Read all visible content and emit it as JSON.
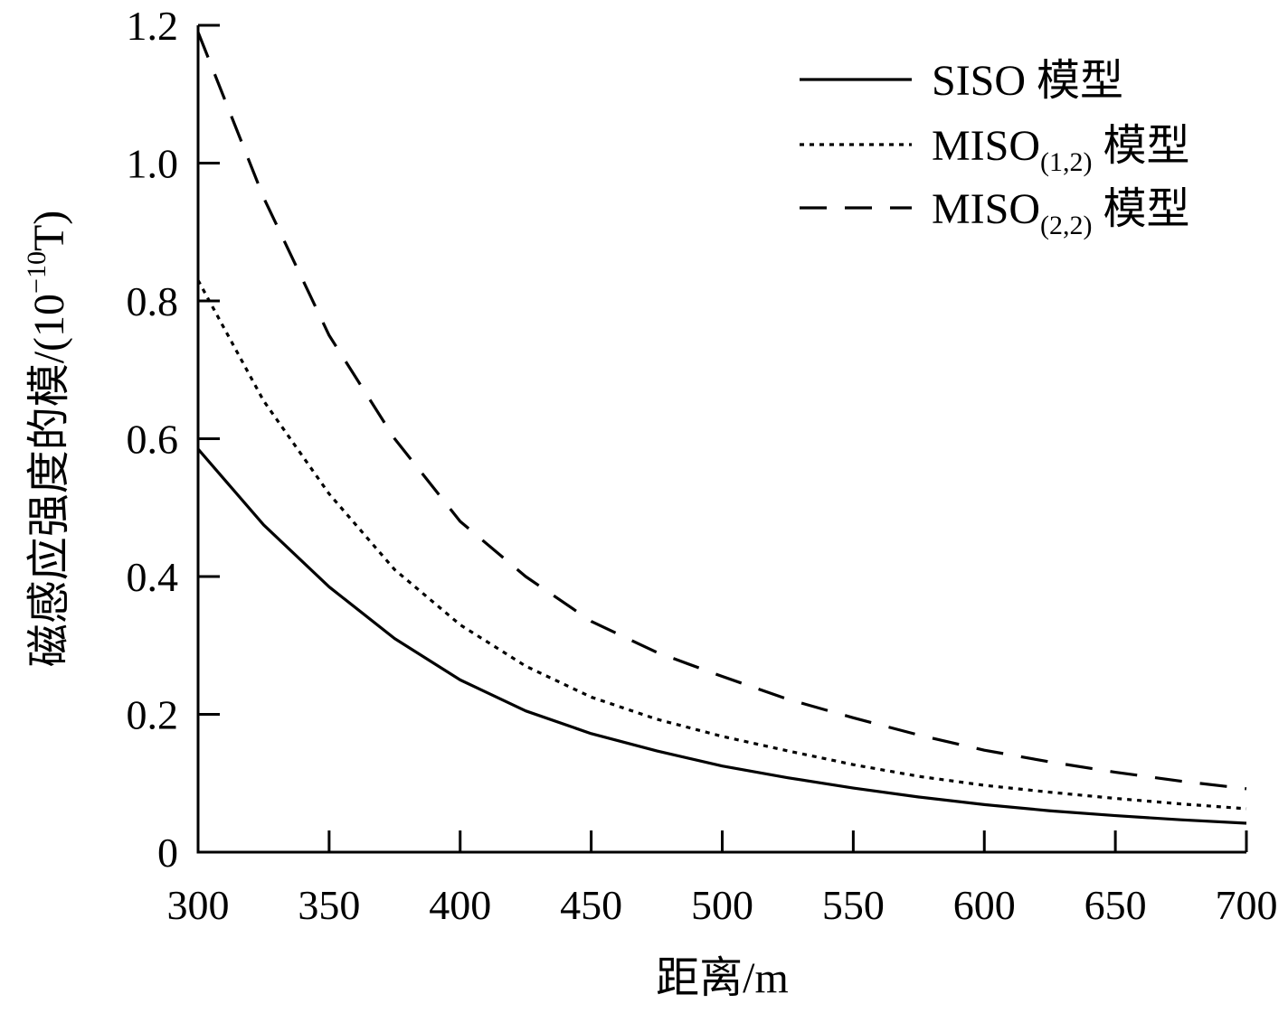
{
  "chart_data": {
    "type": "line",
    "title": "",
    "xlabel": "距离/m",
    "ylabel": {
      "prefix": "磁感应强度的模/(10",
      "exponent": "−10",
      "suffix": "T)"
    },
    "xlim": [
      300,
      700
    ],
    "ylim": [
      0,
      1.2
    ],
    "x_ticks": [
      300,
      350,
      400,
      450,
      500,
      550,
      600,
      650,
      700
    ],
    "y_ticks": [
      0,
      0.2,
      0.4,
      0.6,
      0.8,
      1.0,
      1.2
    ],
    "y_tick_labels": [
      "0",
      "0.2",
      "0.4",
      "0.6",
      "0.8",
      "1.0",
      "1.2"
    ],
    "grid": false,
    "legend_position": "top-right",
    "x": [
      300,
      325,
      350,
      375,
      400,
      425,
      450,
      475,
      500,
      525,
      550,
      575,
      600,
      625,
      650,
      675,
      700
    ],
    "series": [
      {
        "name": "SISO",
        "name_sub": "",
        "name_suffix": " 模型",
        "style": "solid",
        "values": [
          0.585,
          0.475,
          0.385,
          0.31,
          0.25,
          0.205,
          0.172,
          0.147,
          0.125,
          0.108,
          0.093,
          0.08,
          0.069,
          0.06,
          0.053,
          0.047,
          0.042
        ]
      },
      {
        "name": "MISO",
        "name_sub": "(1,2)",
        "name_suffix": " 模型",
        "style": "dotted",
        "values": [
          0.83,
          0.655,
          0.52,
          0.41,
          0.33,
          0.27,
          0.225,
          0.193,
          0.168,
          0.147,
          0.127,
          0.11,
          0.097,
          0.087,
          0.078,
          0.07,
          0.063
        ]
      },
      {
        "name": "MISO",
        "name_sub": "(2,2)",
        "name_suffix": " 模型",
        "style": "dashed",
        "values": [
          1.19,
          0.95,
          0.75,
          0.6,
          0.48,
          0.4,
          0.335,
          0.29,
          0.255,
          0.222,
          0.195,
          0.17,
          0.148,
          0.131,
          0.116,
          0.103,
          0.092
        ]
      }
    ]
  }
}
